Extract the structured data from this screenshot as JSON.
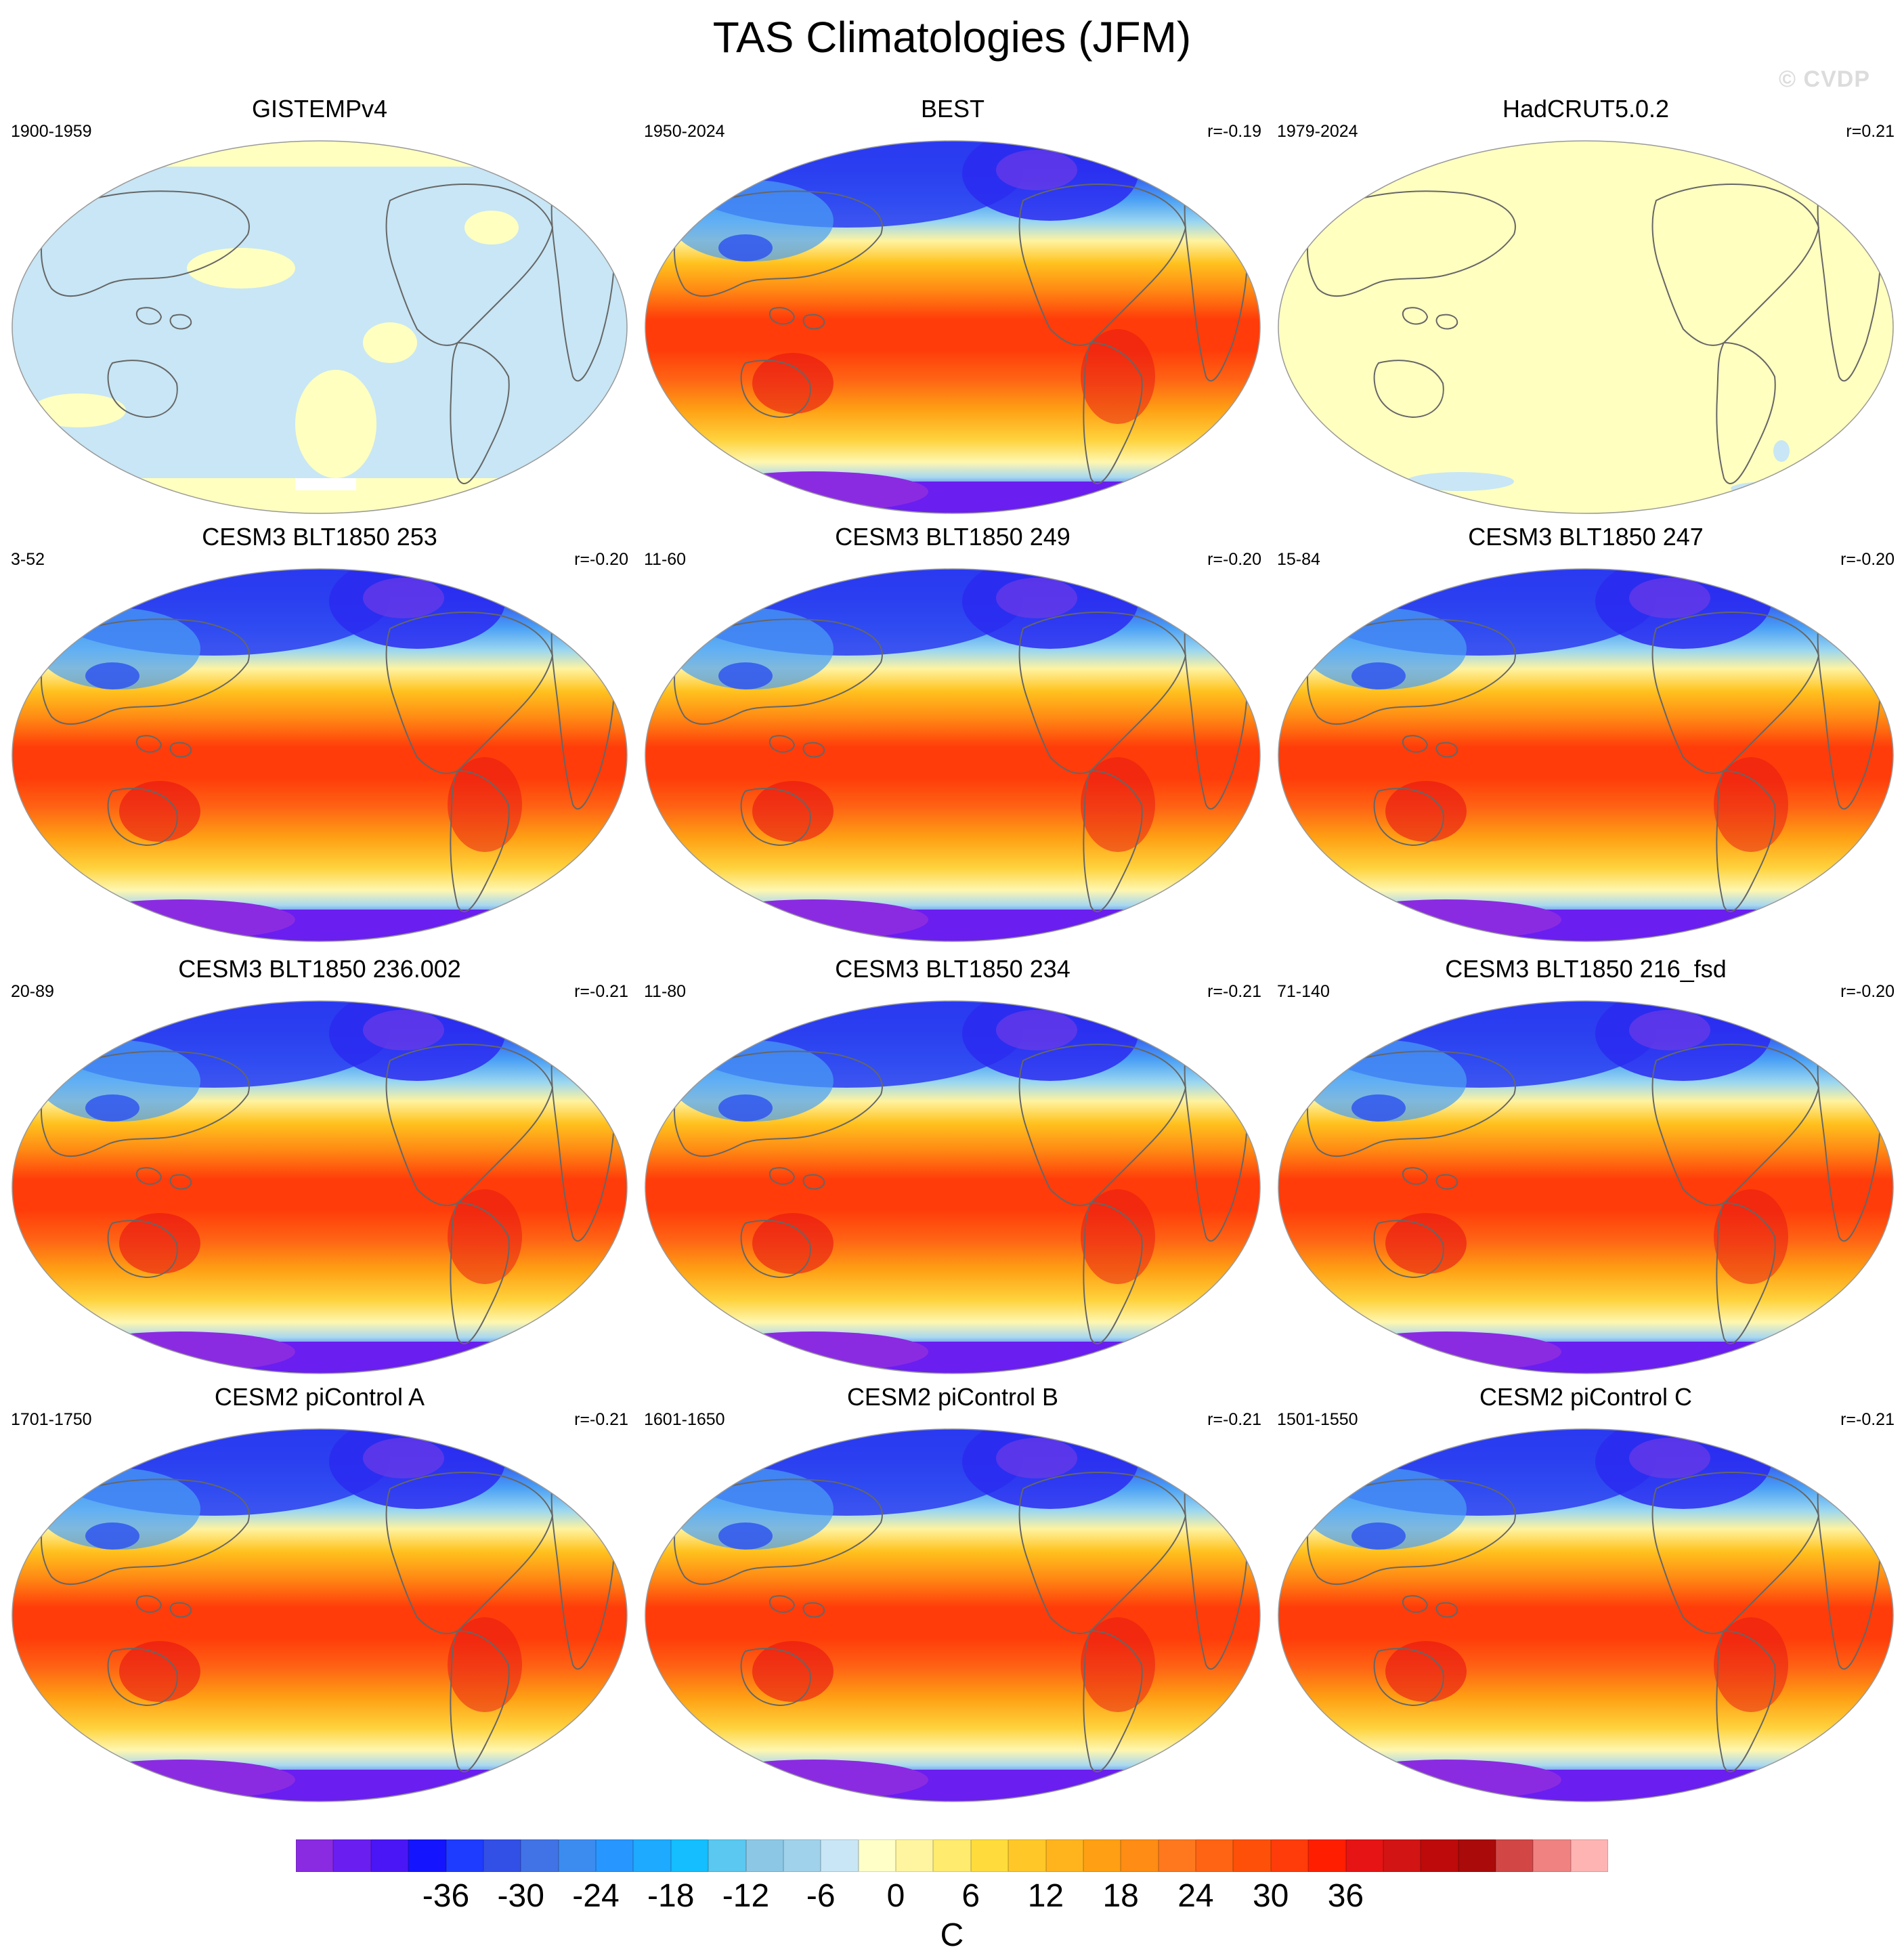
{
  "title": "TAS Climatologies (JFM)",
  "watermark": "© CVDP",
  "panels": [
    {
      "title": "GISTEMPv4",
      "years": "1900-1959",
      "r": "",
      "style": "gistemp"
    },
    {
      "title": "BEST",
      "years": "1950-2024",
      "r": "r=-0.19",
      "style": "best"
    },
    {
      "title": "HadCRUT5.0.2",
      "years": "1979-2024",
      "r": "r=0.21",
      "style": "hadcrut"
    },
    {
      "title": "CESM3 BLT1850 253",
      "years": "3-52",
      "r": "r=-0.20",
      "style": "model"
    },
    {
      "title": "CESM3 BLT1850 249",
      "years": "11-60",
      "r": "r=-0.20",
      "style": "model"
    },
    {
      "title": "CESM3 BLT1850 247",
      "years": "15-84",
      "r": "r=-0.20",
      "style": "model"
    },
    {
      "title": "CESM3 BLT1850 236.002",
      "years": "20-89",
      "r": "r=-0.21",
      "style": "model"
    },
    {
      "title": "CESM3 BLT1850 234",
      "years": "11-80",
      "r": "r=-0.21",
      "style": "model"
    },
    {
      "title": "CESM3 BLT1850 216_fsd",
      "years": "71-140",
      "r": "r=-0.20",
      "style": "model"
    },
    {
      "title": "CESM2 piControl A",
      "years": "1701-1750",
      "r": "r=-0.21",
      "style": "model"
    },
    {
      "title": "CESM2 piControl B",
      "years": "1601-1650",
      "r": "r=-0.21",
      "style": "model"
    },
    {
      "title": "CESM2 piControl C",
      "years": "1501-1550",
      "r": "r=-0.21",
      "style": "model"
    }
  ],
  "colorbar": {
    "unit": "C",
    "labels": [
      "-36",
      "-30",
      "-24",
      "-18",
      "-12",
      "-6",
      "0",
      "6",
      "12",
      "18",
      "24",
      "30",
      "36"
    ],
    "colors": [
      "#8a2be2",
      "#6a1ef0",
      "#4b16f5",
      "#1414ff",
      "#1e3cff",
      "#3250e6",
      "#4173e6",
      "#3c8cf0",
      "#2896ff",
      "#1eaaff",
      "#14beff",
      "#5ac8f0",
      "#8cc8e6",
      "#a0d2eb",
      "#c8e6f5",
      "#ffffc8",
      "#fff5a0",
      "#ffeb6e",
      "#ffdc3c",
      "#ffc828",
      "#ffb41e",
      "#ffa014",
      "#ff8c14",
      "#ff781e",
      "#ff6414",
      "#ff500a",
      "#ff3c0a",
      "#ff1e00",
      "#e61414",
      "#d21414",
      "#be0a0a",
      "#aa0a0a",
      "#d24646",
      "#f08282",
      "#ffb4b4"
    ],
    "labelStartIndex": 3,
    "labelStep": 2,
    "start": -42,
    "step": 3
  }
}
